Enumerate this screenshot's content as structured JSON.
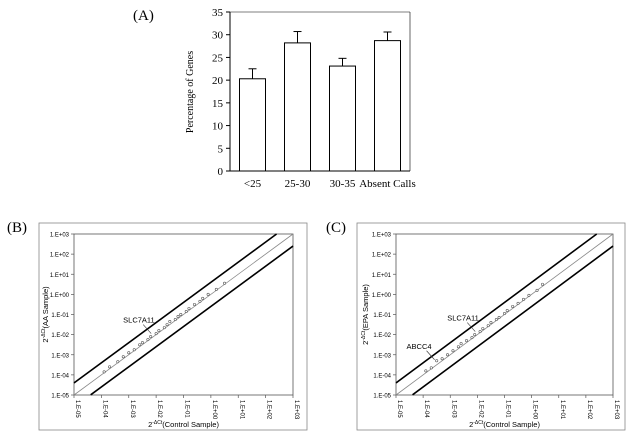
{
  "chart_data": [
    {
      "panel": "(A)",
      "type": "bar",
      "categories": [
        "<25",
        "25-30",
        "30-35",
        "Absent Calls"
      ],
      "values": [
        20.3,
        28.2,
        23.1,
        28.7
      ],
      "error": [
        2.2,
        2.5,
        1.7,
        1.9
      ],
      "ylabel": "Percentage of Genes",
      "ylim": [
        0,
        35
      ],
      "yticks": [
        0,
        5,
        10,
        15,
        20,
        25,
        30,
        35
      ],
      "grid": false
    },
    {
      "panel": "(B)",
      "type": "scatter",
      "xlabel_base": "2",
      "xlabel_sup": "-ΔCt",
      "xlabel_text": "(Control Sample)",
      "ylabel_base": "2",
      "ylabel_sup": "-ΔCt",
      "ylabel_text": "(AA Sample)",
      "xscale": "log",
      "yscale": "log",
      "xlim_exp": [
        -5,
        3
      ],
      "ylim_exp": [
        -5,
        3
      ],
      "xticks": [
        "1.E-05",
        "1.E-04",
        "1.E-03",
        "1.E-02",
        "1.E-01",
        "1.E+00",
        "1.E+01",
        "1.E+02",
        "1.E+03"
      ],
      "yticks": [
        "1.E-05",
        "1.E-04",
        "1.E-03",
        "1.E-02",
        "1.E-01",
        "1.E+00",
        "1.E+01",
        "1.E+02",
        "1.E+03"
      ],
      "fold_boundary_log10": 0.6,
      "points": [
        [
          -3.9,
          -3.85
        ],
        [
          -3.7,
          -3.6
        ],
        [
          -3.4,
          -3.35
        ],
        [
          -3.2,
          -3.1
        ],
        [
          -3.0,
          -2.9
        ],
        [
          -2.8,
          -2.75
        ],
        [
          -2.6,
          -2.5
        ],
        [
          -2.5,
          -2.4
        ],
        [
          -2.3,
          -2.25
        ],
        [
          -2.2,
          -2.1
        ],
        [
          -2.0,
          -1.95
        ],
        [
          -1.9,
          -1.8
        ],
        [
          -1.7,
          -1.65
        ],
        [
          -1.6,
          -1.5
        ],
        [
          -1.5,
          -1.35
        ],
        [
          -1.3,
          -1.25
        ],
        [
          -1.2,
          -1.1
        ],
        [
          -1.1,
          -1.0
        ],
        [
          -0.9,
          -0.85
        ],
        [
          -0.8,
          -0.7
        ],
        [
          -0.6,
          -0.5
        ],
        [
          -0.4,
          -0.35
        ],
        [
          -0.3,
          -0.2
        ],
        [
          -0.1,
          0.0
        ],
        [
          0.2,
          0.25
        ],
        [
          0.5,
          0.55
        ]
      ],
      "annotations": [
        {
          "text": "SLC7A11",
          "x": -2.4,
          "y": -1.7
        }
      ]
    },
    {
      "panel": "(C)",
      "type": "scatter",
      "xlabel_base": "2",
      "xlabel_sup": "-ΔCt",
      "xlabel_text": "(Control Sample)",
      "ylabel_base": "2",
      "ylabel_sup": "-ΔCt",
      "ylabel_text": "(EPA Sample)",
      "xscale": "log",
      "yscale": "log",
      "xlim_exp": [
        -5,
        3
      ],
      "ylim_exp": [
        -5,
        3
      ],
      "xticks": [
        "1.E-05",
        "1.E-04",
        "1.E-03",
        "1.E-02",
        "1.E-01",
        "1.E+00",
        "1.E+01",
        "1.E+02",
        "1.E+03"
      ],
      "yticks": [
        "1.E-05",
        "1.E-04",
        "1.E-03",
        "1.E-02",
        "1.E-01",
        "1.E+00",
        "1.E+01",
        "1.E+02",
        "1.E+03"
      ],
      "fold_boundary_log10": 0.6,
      "points": [
        [
          -3.9,
          -3.8
        ],
        [
          -3.7,
          -3.65
        ],
        [
          -3.5,
          -3.3
        ],
        [
          -3.3,
          -3.2
        ],
        [
          -3.1,
          -3.0
        ],
        [
          -2.9,
          -2.8
        ],
        [
          -2.7,
          -2.6
        ],
        [
          -2.6,
          -2.45
        ],
        [
          -2.4,
          -2.3
        ],
        [
          -2.2,
          -2.15
        ],
        [
          -2.1,
          -2.0
        ],
        [
          -1.9,
          -1.85
        ],
        [
          -1.8,
          -1.7
        ],
        [
          -1.6,
          -1.55
        ],
        [
          -1.5,
          -1.4
        ],
        [
          -1.3,
          -1.25
        ],
        [
          -1.2,
          -1.15
        ],
        [
          -1.0,
          -0.95
        ],
        [
          -0.9,
          -0.8
        ],
        [
          -0.7,
          -0.6
        ],
        [
          -0.5,
          -0.45
        ],
        [
          -0.3,
          -0.25
        ],
        [
          -0.1,
          -0.05
        ],
        [
          0.2,
          0.2
        ],
        [
          0.4,
          0.5
        ]
      ],
      "annotations": [
        {
          "text": "SLC7A11",
          "x": -2.3,
          "y": -1.6
        },
        {
          "text": "ABCC4",
          "x": -3.8,
          "y": -3.0
        }
      ]
    }
  ]
}
